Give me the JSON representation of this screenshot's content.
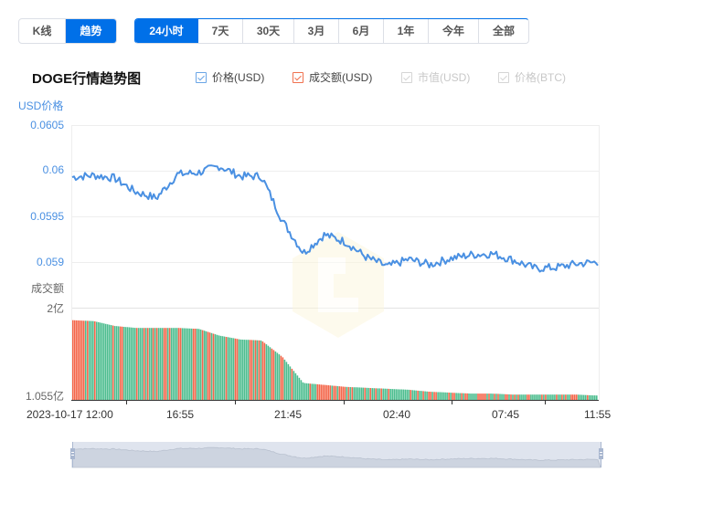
{
  "toolbar": {
    "type_buttons": [
      {
        "label": "K线",
        "active": false
      },
      {
        "label": "趋势",
        "active": true
      }
    ],
    "range_buttons": [
      {
        "label": "24小时",
        "active": true
      },
      {
        "label": "7天",
        "active": false
      },
      {
        "label": "30天",
        "active": false
      },
      {
        "label": "3月",
        "active": false
      },
      {
        "label": "6月",
        "active": false
      },
      {
        "label": "1年",
        "active": false
      },
      {
        "label": "今年",
        "active": false
      },
      {
        "label": "全部",
        "active": false
      }
    ]
  },
  "chart_title": "DOGE行情趋势图",
  "legend": [
    {
      "label": "价格(USD)",
      "checked": true,
      "color": "#4a90e2",
      "enabled": true
    },
    {
      "label": "成交额(USD)",
      "checked": true,
      "color": "#f0714f",
      "enabled": true
    },
    {
      "label": "市值(USD)",
      "checked": true,
      "color": "#cccccc",
      "enabled": false
    },
    {
      "label": "价格(BTC)",
      "checked": true,
      "color": "#cccccc",
      "enabled": false
    }
  ],
  "colors": {
    "accent": "#0070e8",
    "price_line": "#4a90e2",
    "volume_up": "#4dbd8f",
    "volume_down": "#f4664a",
    "axis_text_price": "#4a90e2",
    "axis_text_volume": "#666666",
    "slider_bg": "#d8dde8"
  },
  "chart_data": {
    "type": "line",
    "title": "DOGE行情趋势图",
    "price_axis": {
      "label": "USD价格",
      "ticks": [
        "0.0605",
        "0.06",
        "0.0595",
        "0.059"
      ],
      "ylim": [
        0.05885,
        0.0605
      ]
    },
    "volume_axis": {
      "label": "成交额",
      "ticks": [
        "2亿",
        "1.055亿"
      ],
      "ylim": [
        1.055,
        2.0
      ],
      "unit": "亿"
    },
    "x_ticks": [
      "2023-10-17 12:00",
      "16:55",
      "21:45",
      "02:40",
      "07:45",
      "11:55"
    ],
    "grid": true,
    "series": [
      {
        "name": "价格(USD)",
        "type": "line",
        "x": [
          "12:00",
          "13:00",
          "14:00",
          "15:00",
          "16:00",
          "16:55",
          "18:00",
          "19:00",
          "20:00",
          "21:00",
          "21:45",
          "22:30",
          "23:00",
          "00:00",
          "01:00",
          "02:00",
          "02:40",
          "03:30",
          "04:30",
          "05:30",
          "06:30",
          "07:45",
          "08:30",
          "09:30",
          "10:30",
          "11:55"
        ],
        "values": [
          0.05993,
          0.05995,
          0.05992,
          0.05977,
          0.0597,
          0.05996,
          0.05998,
          0.06005,
          0.05994,
          0.05994,
          0.05945,
          0.0591,
          0.0593,
          0.05922,
          0.05905,
          0.05895,
          0.05903,
          0.05897,
          0.05904,
          0.05908,
          0.05909,
          0.05902,
          0.05893,
          0.05894,
          0.05898,
          0.059
        ]
      },
      {
        "name": "成交额(USD)",
        "type": "bar",
        "unit": "亿",
        "x": [
          "12:00",
          "13:00",
          "14:00",
          "15:00",
          "16:00",
          "16:55",
          "18:00",
          "19:00",
          "20:00",
          "21:00",
          "21:45",
          "22:30",
          "23:00",
          "00:00",
          "01:00",
          "02:00",
          "02:40",
          "03:30",
          "04:30",
          "05:30",
          "06:30",
          "07:45",
          "08:30",
          "09:30",
          "10:30",
          "11:55"
        ],
        "values": [
          1.88,
          1.87,
          1.82,
          1.8,
          1.8,
          1.8,
          1.79,
          1.72,
          1.68,
          1.67,
          1.5,
          1.23,
          1.21,
          1.19,
          1.18,
          1.17,
          1.16,
          1.14,
          1.13,
          1.12,
          1.12,
          1.11,
          1.11,
          1.11,
          1.11,
          1.1
        ]
      }
    ]
  },
  "data_zoom": {
    "start_pct": 0,
    "end_pct": 100
  }
}
